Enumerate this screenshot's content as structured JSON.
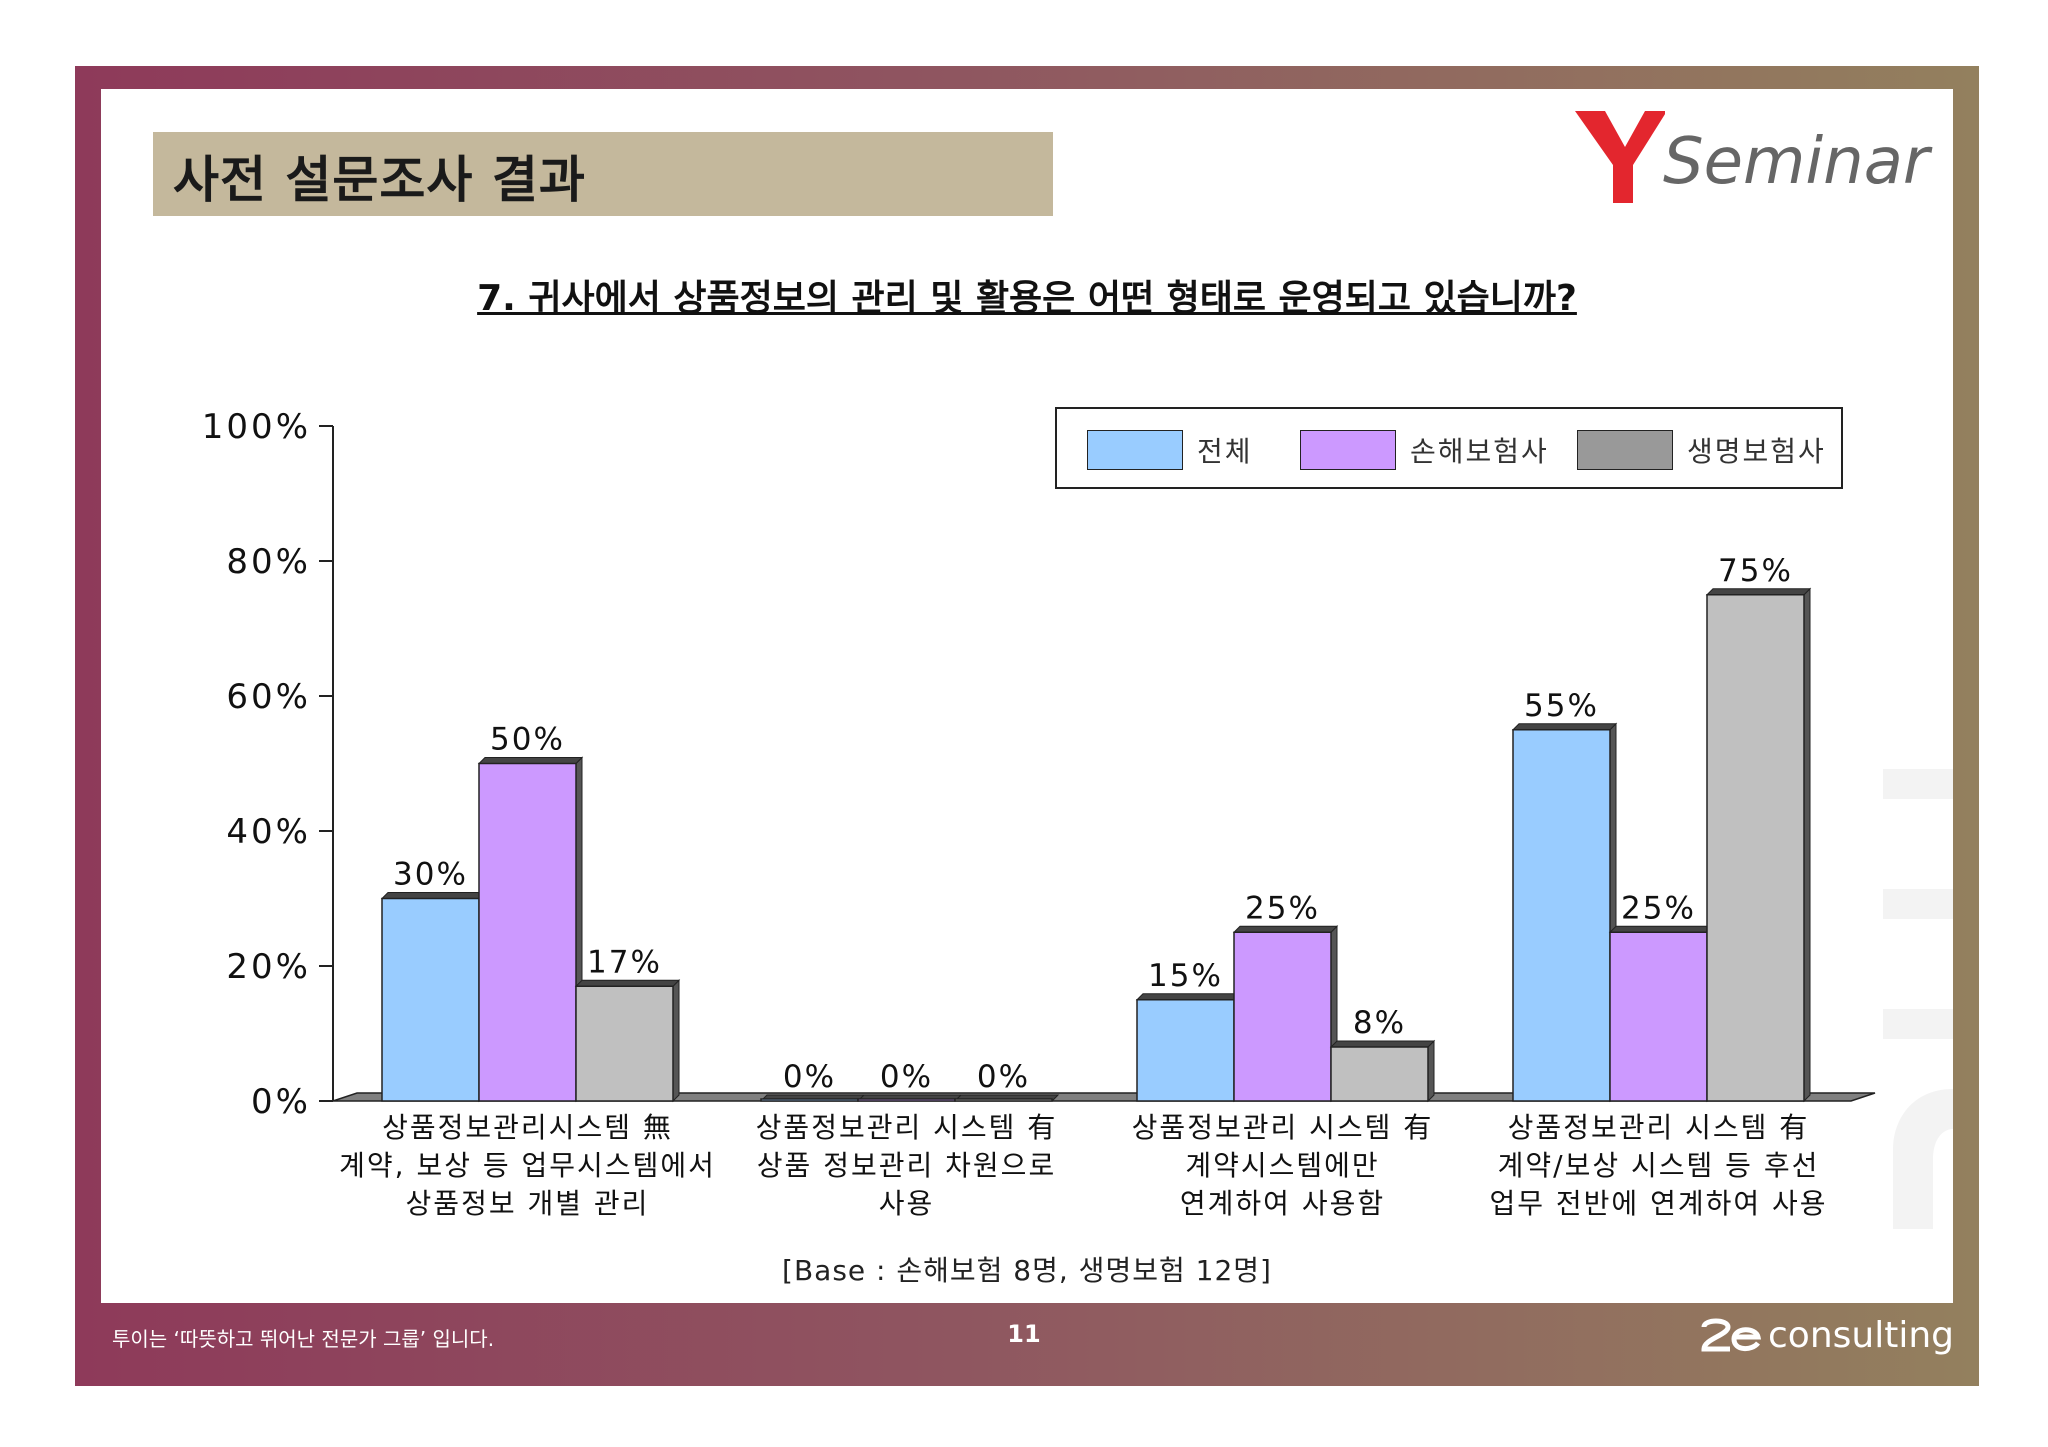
{
  "header": {
    "title": "사전 설문조사 결과",
    "logo_text": "Seminar",
    "logo_icon": "y-logo-icon"
  },
  "question": "7. 귀사에서 상품정보의 관리 및 활용은 어떤 형태로 운영되고 있습니까?",
  "base_note": "[Base :  손해보험 8명, 생명보험  12명]",
  "footer": {
    "slogan": "투이는 ‘따뜻하고 뛰어난 전문가 그룹’ 입니다.",
    "page_number": "11",
    "logo_text": "consulting"
  },
  "colors": {
    "series_1": "#99ccff",
    "series_2": "#cc99ff",
    "series_3": "#c0c0c0",
    "title_band": "#c4b89c",
    "logo_red": "#e3262e"
  },
  "chart_data": {
    "type": "bar",
    "title": "",
    "xlabel": "",
    "ylabel": "",
    "ylim": [
      0,
      100
    ],
    "yticks": [
      "0%",
      "20%",
      "40%",
      "60%",
      "80%",
      "100%"
    ],
    "grid": false,
    "legend_position": "top-right",
    "categories": [
      [
        "상품정보관리시스템 無",
        "계약, 보상 등 업무시스템에서",
        "상품정보 개별 관리"
      ],
      [
        "상품정보관리 시스템 有",
        "상품 정보관리 차원으로",
        "사용"
      ],
      [
        "상품정보관리 시스템 有",
        "계약시스템에만",
        "연계하여 사용함"
      ],
      [
        "상품정보관리 시스템 有",
        "계약/보상 시스템 등 후선",
        "업무 전반에 연계하여 사용"
      ]
    ],
    "series": [
      {
        "name": "전체",
        "values": [
          30,
          0,
          15,
          55
        ],
        "labels": [
          "30%",
          "0%",
          "15%",
          "55%"
        ]
      },
      {
        "name": "손해보험사",
        "values": [
          50,
          0,
          25,
          25
        ],
        "labels": [
          "50%",
          "0%",
          "25%",
          "25%"
        ]
      },
      {
        "name": "생명보험사",
        "values": [
          17,
          0,
          8,
          75
        ],
        "labels": [
          "17%",
          "0%",
          "8%",
          "75%"
        ]
      }
    ]
  }
}
